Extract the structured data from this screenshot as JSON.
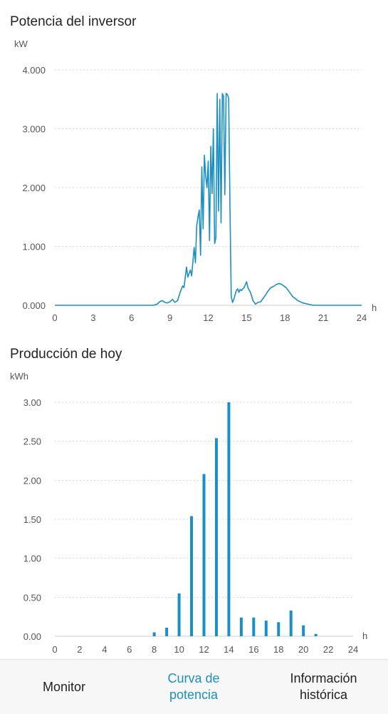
{
  "colors": {
    "accent": "#1a8fc4",
    "grid": "#d6d6d6",
    "text": "#222222",
    "axis_text": "#555555",
    "nav_bg": "#f7f7f7"
  },
  "bottom_nav": {
    "items": [
      {
        "label": "Monitor",
        "active": false
      },
      {
        "label": "Curva de\npotencia",
        "active": true
      },
      {
        "label": "Información\nhistórica",
        "active": false
      }
    ]
  },
  "chart_data": [
    {
      "type": "line",
      "title": "Potencia del inversor",
      "ylabel": "kW",
      "xlabel": "h",
      "xlim": [
        0,
        24
      ],
      "ylim": [
        0,
        4
      ],
      "yticks": [
        "0.000",
        "1.000",
        "2.000",
        "3.000",
        "4.000"
      ],
      "xticks": [
        "0",
        "3",
        "6",
        "9",
        "12",
        "15",
        "18",
        "21",
        "24"
      ],
      "grid": true,
      "series": [
        {
          "x": [
            0,
            7.7,
            8.0,
            8.2,
            8.4,
            8.6,
            8.8,
            9.0,
            9.2,
            9.4,
            9.6,
            9.8,
            10.0,
            10.1,
            10.3,
            10.4,
            10.6,
            10.7,
            10.9,
            11.0,
            11.1,
            11.2,
            11.3,
            11.4,
            11.5,
            11.6,
            11.7,
            11.8,
            11.9,
            12.0,
            12.1,
            12.2,
            12.3,
            12.4,
            12.5,
            12.6,
            12.7,
            12.8,
            12.9,
            13.0,
            13.1,
            13.2,
            13.3,
            13.4,
            13.5,
            13.6,
            13.7,
            13.8,
            13.9,
            14.0,
            14.1,
            14.2,
            14.3,
            14.4,
            14.5,
            14.6,
            14.7,
            14.8,
            14.9,
            15.0,
            15.1,
            15.3,
            15.5,
            15.7,
            15.9,
            16.1,
            16.3,
            16.5,
            16.7,
            16.9,
            17.1,
            17.3,
            17.5,
            17.7,
            17.9,
            18.1,
            18.3,
            18.6,
            19.0,
            19.4,
            19.8,
            20.2,
            20.5,
            20.8,
            21.0,
            21.3,
            21.6,
            22,
            24
          ],
          "y": [
            0,
            0,
            0.02,
            0.06,
            0.08,
            0.05,
            0.04,
            0.06,
            0.1,
            0.05,
            0.08,
            0.22,
            0.33,
            0.3,
            0.65,
            0.48,
            0.6,
            0.5,
            0.98,
            0.72,
            1.35,
            1.5,
            1.62,
            0.85,
            2.35,
            1.3,
            2.55,
            2.2,
            2.0,
            2.45,
            1.1,
            2.7,
            1.9,
            3.0,
            1.05,
            1.15,
            3.6,
            1.6,
            3.5,
            1.4,
            3.6,
            3.55,
            1.88,
            3.6,
            3.58,
            3.52,
            1.7,
            0.15,
            0.05,
            0.1,
            0.18,
            0.25,
            0.28,
            0.22,
            0.27,
            0.25,
            0.28,
            0.3,
            0.35,
            0.4,
            0.3,
            0.22,
            0.08,
            0.02,
            0.05,
            0.06,
            0.12,
            0.18,
            0.25,
            0.3,
            0.32,
            0.35,
            0.37,
            0.36,
            0.33,
            0.3,
            0.24,
            0.15,
            0.08,
            0.04,
            0.02,
            0,
            0,
            0,
            0,
            0,
            0,
            0,
            0
          ]
        }
      ]
    },
    {
      "type": "bar",
      "title": "Producción de hoy",
      "ylabel": "kWh",
      "xlabel": "h",
      "xlim": [
        0,
        24
      ],
      "ylim": [
        0,
        3
      ],
      "yticks": [
        "0.00",
        "0.50",
        "1.00",
        "1.50",
        "2.00",
        "2.50",
        "3.00"
      ],
      "xticks": [
        "0",
        "2",
        "4",
        "6",
        "8",
        "10",
        "12",
        "14",
        "16",
        "18",
        "20",
        "22",
        "24"
      ],
      "grid": true,
      "categories": [
        8,
        9,
        10,
        11,
        12,
        13,
        14,
        15,
        16,
        17,
        18,
        19,
        20,
        21
      ],
      "values": [
        0.05,
        0.11,
        0.55,
        1.54,
        2.08,
        2.54,
        3.0,
        0.24,
        0.24,
        0.2,
        0.18,
        0.33,
        0.14,
        0.03
      ]
    }
  ]
}
